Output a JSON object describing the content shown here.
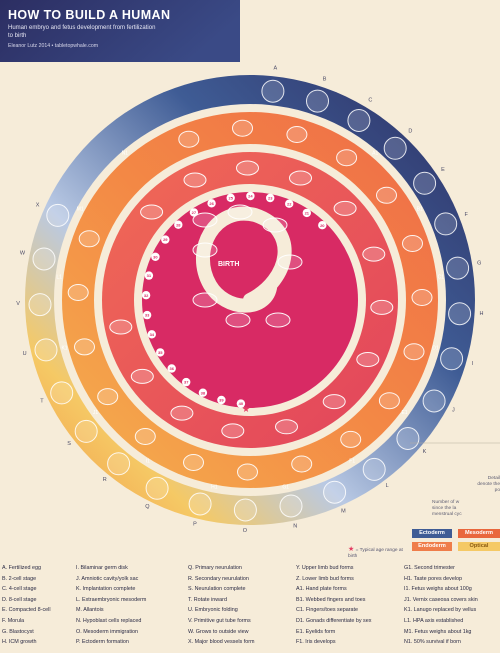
{
  "title": "HOW TO BUILD A HUMAN",
  "subtitle": "Human embryo and fetus development from fertilization to birth",
  "byline": "Eleanor Lutz 2014 • tabletopwhale.com",
  "center_label": "BIRTH",
  "colors": {
    "navy": "#2c2e62",
    "blue": "#3f5c95",
    "lightblue": "#b9c9e4",
    "yellow": "#f5c965",
    "orange": "#f39143",
    "red": "#ed5b52",
    "magenta": "#d82a64",
    "cream": "#f6ecd9",
    "star": "#e33e64"
  },
  "legend": [
    {
      "label": "Ectoderm",
      "color": "#3f5c95"
    },
    {
      "label": "Mesoderm",
      "color": "#e9673d"
    },
    {
      "label": "Endoderm",
      "color": "#ef7d4a"
    },
    {
      "label": "Optical",
      "color": "#f5c965"
    }
  ],
  "typical_note": "= Typical age range at birth",
  "note_lines_1": [
    "Detail",
    "denote the",
    "po"
  ],
  "note_lines_2": [
    "Number of w",
    "since the la",
    "menstrual cyc"
  ],
  "outer_ring_letters": [
    "A",
    "B",
    "C",
    "D",
    "E",
    "F",
    "G",
    "H",
    "I",
    "J",
    "K",
    "L",
    "M",
    "N",
    "O",
    "P",
    "Q",
    "R",
    "S",
    "T",
    "U",
    "V",
    "W",
    "X"
  ],
  "middle_ring_labels": [
    "A1",
    "B1",
    "C1",
    "D1",
    "E1",
    "F1",
    "G1",
    "H1",
    "I1",
    "J1",
    "K1",
    "L1",
    "M1",
    "N1"
  ],
  "week_numbers": [
    "40",
    "39",
    "38",
    "37",
    "36",
    "35",
    "34",
    "33",
    "32",
    "31",
    "30",
    "29",
    "28",
    "27",
    "26",
    "25",
    "24",
    "23",
    "22",
    "21",
    "20"
  ],
  "key_columns": [
    [
      "A. Fertilized egg",
      "B. 2-cell stage",
      "C. 4-cell stage",
      "D. 8-cell stage",
      "E. Compacted 8-cell",
      "F. Morula",
      "G. Blastocyst",
      "H. ICM growth"
    ],
    [
      "I. Bilaminar germ disk",
      "J. Amniotic cavity/yolk sac",
      "K. Implantation complete",
      "L. Extraembryonic mesoderm",
      "M. Allantois",
      "N. Hypoblast cells replaced",
      "O. Mesoderm immigration",
      "P. Ectoderm formation"
    ],
    [
      "Q. Primary neurulation",
      "R. Secondary neurulation",
      "S. Neurulation complete",
      "T. Rotate inward",
      "U. Embryonic folding",
      "V. Primitive gut tube forms",
      "W. Grows to outside view",
      "X. Major blood vessels form"
    ],
    [
      "Y. Upper limb bud forms",
      "Z. Lower limb bud forms",
      "A1. Hand plate forms",
      "B1. Webbed fingers and toes",
      "C1. Fingers/toes separate",
      "D1. Gonads differentiate by sex",
      "E1. Eyelids form",
      "F1. Iris develops"
    ],
    [
      "G1. Second trimester",
      "H1. Taste pores develop",
      "I1. Fetus weighs about 100g",
      "J1. Vernix caseosa covers skin",
      "K1. Lanugo replaced by vellus",
      "L1. HPA axis established",
      "M1. Fetus weighs about 1kg",
      "N1. 50% survival if born"
    ]
  ]
}
